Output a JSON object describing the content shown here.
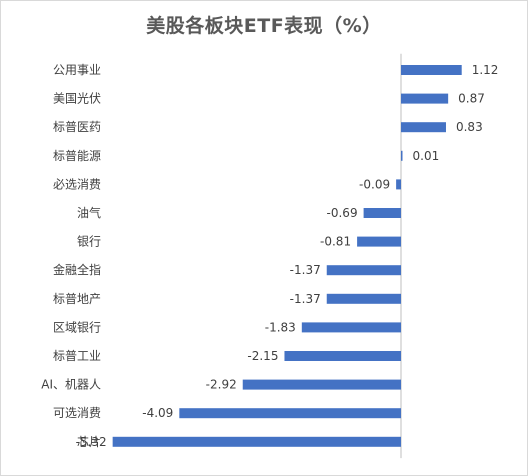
{
  "chart_data": {
    "type": "bar",
    "orientation": "horizontal",
    "title": "美股各板块ETF表现（%）",
    "categories": [
      "公用事业",
      "美国光伏",
      "标普医药",
      "标普能源",
      "必选消费",
      "油气",
      "银行",
      "金融全指",
      "标普地产",
      "区域银行",
      "标普工业",
      "AI、机器人",
      "可选消费",
      "芯片"
    ],
    "values": [
      1.12,
      0.87,
      0.83,
      0.01,
      -0.09,
      -0.69,
      -0.81,
      -1.37,
      -1.37,
      -1.83,
      -2.15,
      -2.92,
      -4.09,
      -5.32
    ],
    "value_labels": [
      "1.12",
      "0.87",
      "0.83",
      "0.01",
      "-0.09",
      "-0.69",
      "-0.81",
      "-1.37",
      "-1.37",
      "-1.83",
      "-2.15",
      "-2.92",
      "-4.09",
      "-5.32"
    ],
    "bar_color": "#4472C4",
    "grid": false,
    "legend": "none",
    "xlabel": "",
    "ylabel": ""
  }
}
